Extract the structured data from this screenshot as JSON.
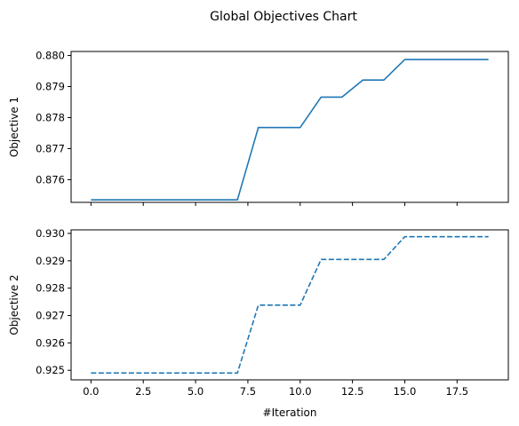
{
  "chart_data": {
    "title": "Global Objectives Chart",
    "type": "line",
    "xlabel": "#Iteration",
    "xlim": [
      -0.95,
      19.95
    ],
    "x_ticks": [
      0.0,
      2.5,
      5.0,
      7.5,
      10.0,
      12.5,
      15.0,
      17.5
    ],
    "x_tick_labels": [
      "0.0",
      "2.5",
      "5.0",
      "7.5",
      "10.0",
      "12.5",
      "15.0",
      "17.5"
    ],
    "grid": false,
    "legend": "none",
    "subplots": [
      {
        "ylabel": "Objective 1",
        "ylim": [
          0.87527,
          0.88013
        ],
        "y_ticks": [
          0.876,
          0.877,
          0.878,
          0.879,
          0.88
        ],
        "y_tick_labels": [
          "0.876",
          "0.877",
          "0.878",
          "0.879",
          "0.880"
        ],
        "show_x_tick_labels": false,
        "line_style": "solid",
        "color": "#1f77b4",
        "x": [
          0,
          1,
          2,
          3,
          4,
          5,
          6,
          7,
          8,
          9,
          10,
          11,
          12,
          13,
          14,
          15,
          16,
          17,
          18,
          19
        ],
        "values": [
          0.87535,
          0.87535,
          0.87535,
          0.87535,
          0.87535,
          0.87535,
          0.87535,
          0.87535,
          0.87768,
          0.87768,
          0.87768,
          0.87866,
          0.87866,
          0.87921,
          0.87921,
          0.87987,
          0.87987,
          0.87987,
          0.87987,
          0.87987
        ]
      },
      {
        "ylabel": "Objective 2",
        "ylim": [
          0.92465,
          0.93013
        ],
        "y_ticks": [
          0.925,
          0.926,
          0.927,
          0.928,
          0.929,
          0.93
        ],
        "y_tick_labels": [
          "0.925",
          "0.926",
          "0.927",
          "0.928",
          "0.929",
          "0.930"
        ],
        "show_x_tick_labels": true,
        "line_style": "dashed",
        "color": "#1f77b4",
        "x": [
          0,
          1,
          2,
          3,
          4,
          5,
          6,
          7,
          8,
          9,
          10,
          11,
          12,
          13,
          14,
          15,
          16,
          17,
          18,
          19
        ],
        "values": [
          0.9249,
          0.9249,
          0.9249,
          0.9249,
          0.9249,
          0.9249,
          0.9249,
          0.9249,
          0.92738,
          0.92738,
          0.92738,
          0.92905,
          0.92905,
          0.92905,
          0.92905,
          0.92988,
          0.92988,
          0.92988,
          0.92988,
          0.92988
        ]
      }
    ]
  }
}
